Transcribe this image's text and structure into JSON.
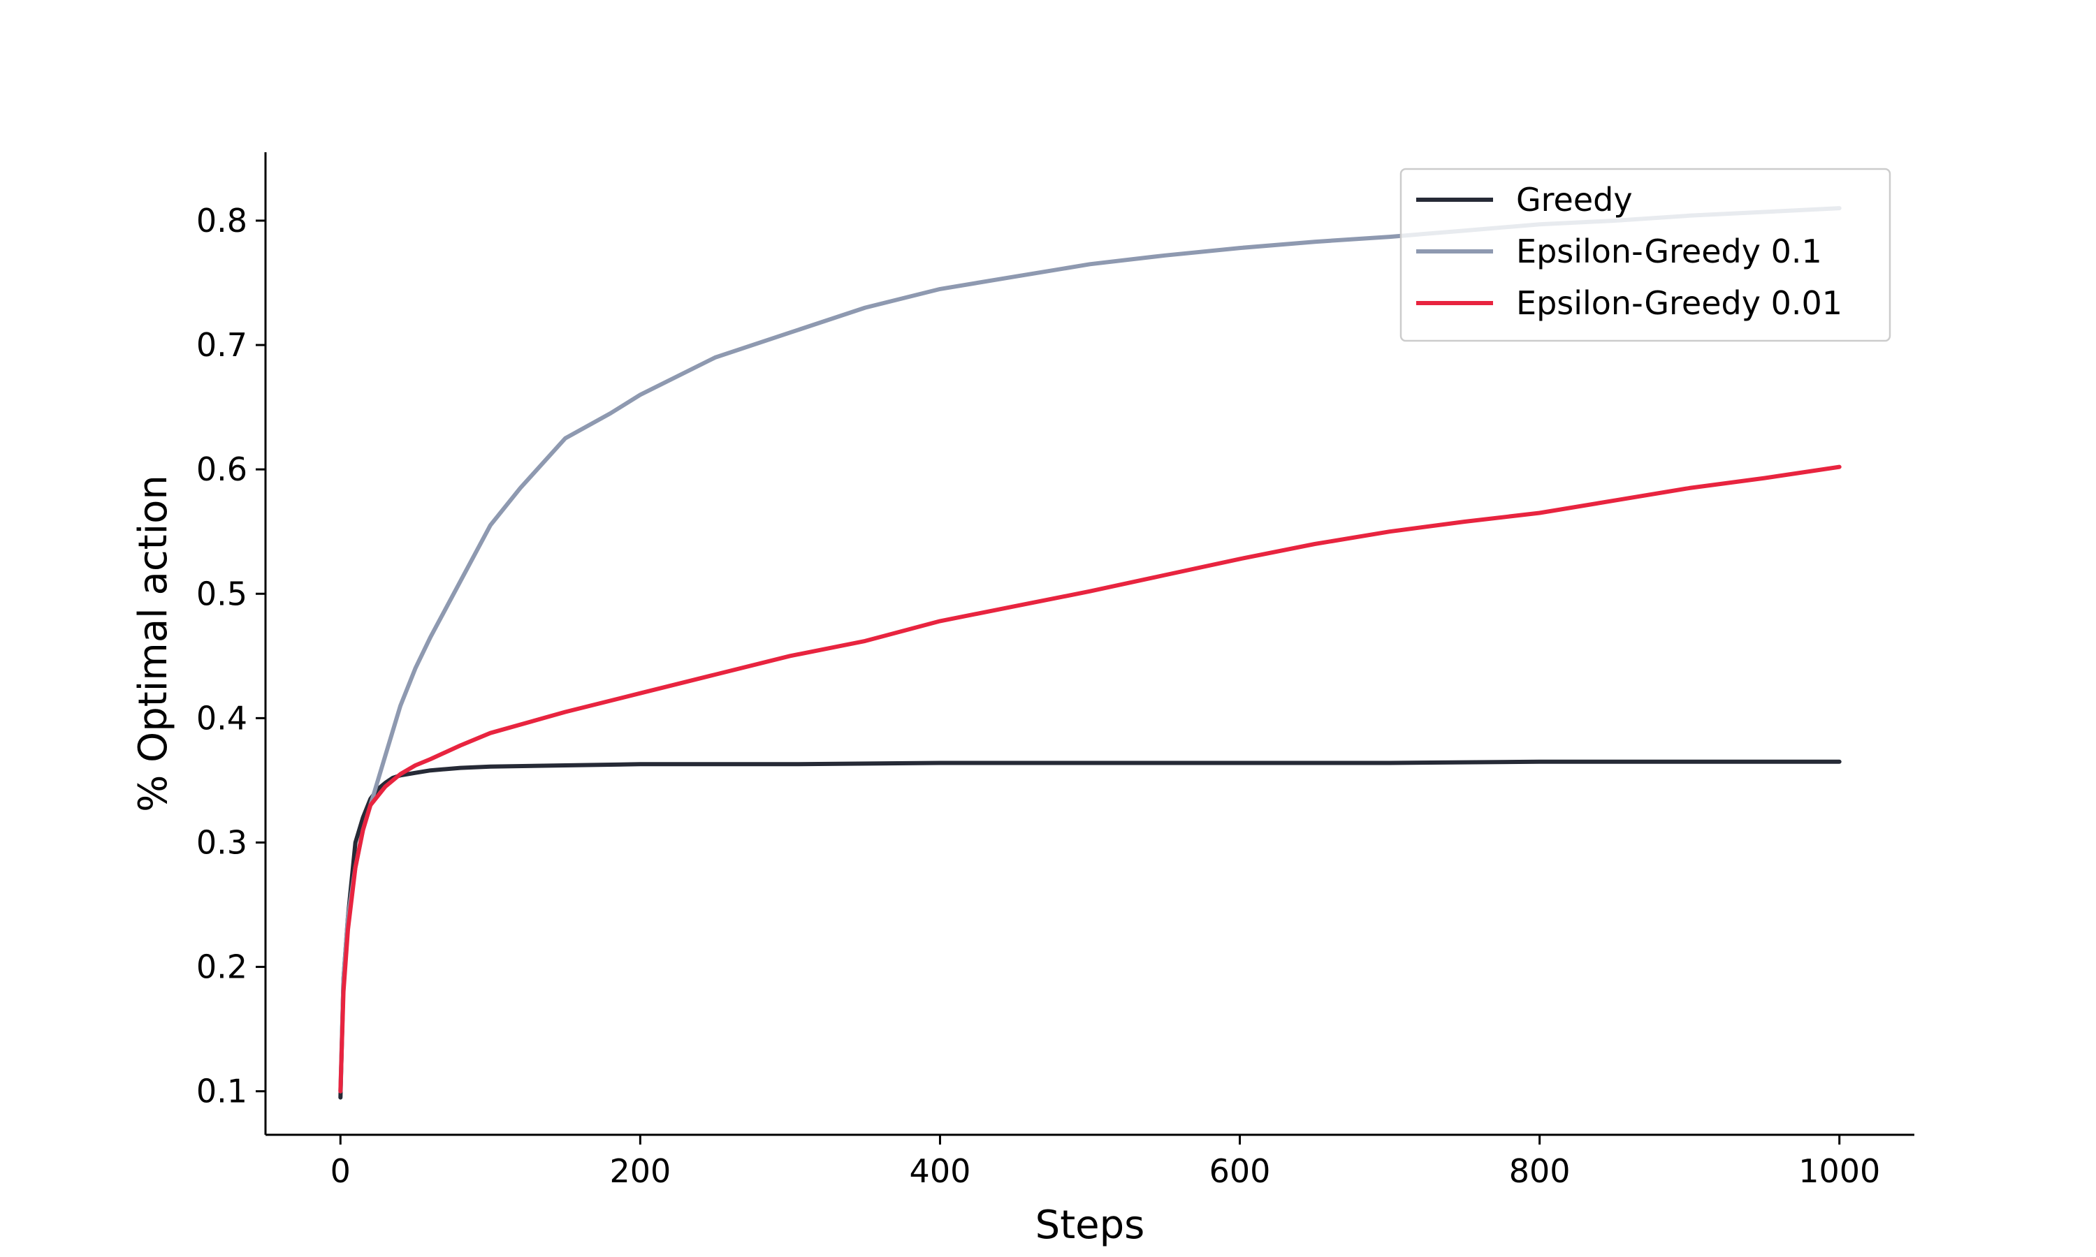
{
  "chart_data": {
    "type": "line",
    "title": "",
    "xlabel": "Steps",
    "ylabel": "% Optimal action",
    "xlim": [
      -50,
      1050
    ],
    "ylim": [
      0.065,
      0.855
    ],
    "xticks": [
      0,
      200,
      400,
      600,
      800,
      1000
    ],
    "xtick_labels": [
      "0",
      "200",
      "400",
      "600",
      "800",
      "1000"
    ],
    "yticks": [
      0.1,
      0.2,
      0.3,
      0.4,
      0.5,
      0.6,
      0.7,
      0.8
    ],
    "ytick_labels": [
      "0.1",
      "0.2",
      "0.3",
      "0.4",
      "0.5",
      "0.6",
      "0.7",
      "0.8"
    ],
    "grid": false,
    "legend_position": "top-right",
    "series": [
      {
        "name": "Greedy",
        "color": "#262a36",
        "x": [
          0,
          2,
          5,
          10,
          15,
          20,
          25,
          30,
          35,
          40,
          50,
          60,
          80,
          100,
          150,
          200,
          300,
          400,
          500,
          600,
          700,
          800,
          900,
          1000
        ],
        "y": [
          0.095,
          0.19,
          0.24,
          0.3,
          0.32,
          0.335,
          0.343,
          0.348,
          0.352,
          0.354,
          0.356,
          0.358,
          0.36,
          0.361,
          0.362,
          0.363,
          0.363,
          0.364,
          0.364,
          0.364,
          0.364,
          0.365,
          0.365,
          0.365
        ]
      },
      {
        "name": "Epsilon-Greedy 0.1",
        "color": "#8e99b0",
        "x": [
          0,
          2,
          5,
          10,
          15,
          20,
          30,
          40,
          50,
          60,
          80,
          100,
          120,
          150,
          180,
          200,
          250,
          300,
          350,
          400,
          450,
          500,
          550,
          600,
          650,
          700,
          750,
          800,
          850,
          900,
          950,
          1000
        ],
        "y": [
          0.1,
          0.19,
          0.24,
          0.28,
          0.31,
          0.33,
          0.37,
          0.41,
          0.44,
          0.465,
          0.51,
          0.555,
          0.585,
          0.625,
          0.645,
          0.66,
          0.69,
          0.71,
          0.73,
          0.745,
          0.755,
          0.765,
          0.772,
          0.778,
          0.783,
          0.787,
          0.792,
          0.797,
          0.8,
          0.804,
          0.807,
          0.81
        ]
      },
      {
        "name": "Epsilon-Greedy 0.01",
        "color": "#e8243f",
        "x": [
          0,
          2,
          5,
          10,
          15,
          20,
          30,
          40,
          50,
          60,
          80,
          100,
          150,
          200,
          250,
          300,
          350,
          400,
          450,
          500,
          550,
          600,
          650,
          700,
          750,
          800,
          850,
          900,
          950,
          1000
        ],
        "y": [
          0.1,
          0.18,
          0.23,
          0.28,
          0.31,
          0.33,
          0.345,
          0.355,
          0.362,
          0.367,
          0.378,
          0.388,
          0.405,
          0.42,
          0.435,
          0.45,
          0.462,
          0.478,
          0.49,
          0.502,
          0.515,
          0.528,
          0.54,
          0.55,
          0.558,
          0.565,
          0.575,
          0.585,
          0.593,
          0.602
        ]
      }
    ]
  }
}
